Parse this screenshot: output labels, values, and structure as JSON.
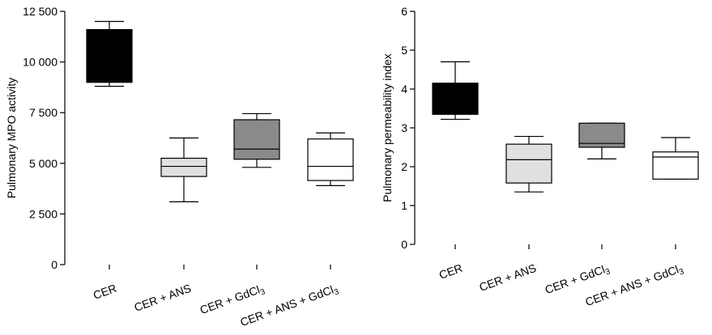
{
  "chart_data": [
    {
      "type": "box",
      "ylabel": "Pulmonary MPO activity",
      "ylim": [
        0,
        12500
      ],
      "yticks": [
        0,
        2500,
        5000,
        7500,
        10000,
        12500
      ],
      "ytick_labels": [
        "0",
        "2 500",
        "5 000",
        "7 500",
        "10 000",
        "12 500"
      ],
      "categories": [
        {
          "text": "CER",
          "sub": ""
        },
        {
          "text": "CER + ANS",
          "sub": ""
        },
        {
          "text": "CER + GdCl",
          "sub": "3"
        },
        {
          "text": "CER + ANS + GdCl",
          "sub": "3"
        }
      ],
      "boxes": [
        {
          "min": 8800,
          "q1": 9000,
          "median": 9000,
          "q3": 11600,
          "max": 12000,
          "fill": "#000000"
        },
        {
          "min": 3100,
          "q1": 4350,
          "median": 4850,
          "q3": 5250,
          "max": 6250,
          "fill": "#e0e0e0"
        },
        {
          "min": 4800,
          "q1": 5200,
          "median": 5700,
          "q3": 7150,
          "max": 7450,
          "fill": "#8a8a8a"
        },
        {
          "min": 3900,
          "q1": 4150,
          "median": 4850,
          "q3": 6200,
          "max": 6500,
          "fill": "#ffffff"
        }
      ]
    },
    {
      "type": "box",
      "ylabel": "Pulmonary permeability index",
      "ylim": [
        0,
        6
      ],
      "yticks": [
        0,
        1,
        2,
        3,
        4,
        5,
        6
      ],
      "ytick_labels": [
        "0",
        "1",
        "2",
        "3",
        "4",
        "5",
        "6"
      ],
      "categories": [
        {
          "text": "CER",
          "sub": ""
        },
        {
          "text": "CER + ANS",
          "sub": ""
        },
        {
          "text": "CER + GdCl",
          "sub": "3"
        },
        {
          "text": "CER + ANS + GdCl",
          "sub": "3"
        }
      ],
      "boxes": [
        {
          "min": 3.22,
          "q1": 3.35,
          "median": 3.35,
          "q3": 4.15,
          "max": 4.7,
          "fill": "#000000"
        },
        {
          "min": 1.35,
          "q1": 1.58,
          "median": 2.18,
          "q3": 2.58,
          "max": 2.78,
          "fill": "#e0e0e0"
        },
        {
          "min": 2.2,
          "q1": 2.5,
          "median": 2.6,
          "q3": 3.12,
          "max": 3.12,
          "fill": "#8a8a8a"
        },
        {
          "min": 1.68,
          "q1": 1.68,
          "median": 2.25,
          "q3": 2.38,
          "max": 2.75,
          "fill": "#ffffff"
        }
      ]
    }
  ]
}
